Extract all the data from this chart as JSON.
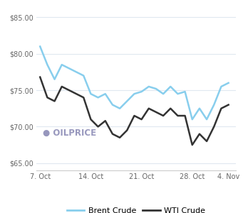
{
  "brent_x": [
    0,
    1,
    2,
    3,
    4,
    5,
    6,
    7,
    8,
    9,
    10,
    11,
    12,
    13,
    14,
    15,
    16,
    17,
    18,
    19,
    20,
    21,
    22,
    23,
    24,
    25,
    26
  ],
  "brent_y": [
    81.0,
    78.5,
    76.5,
    78.5,
    78.0,
    77.5,
    77.0,
    74.5,
    74.0,
    74.5,
    73.0,
    72.5,
    73.5,
    74.5,
    74.8,
    75.5,
    75.2,
    74.5,
    75.5,
    74.5,
    74.8,
    71.0,
    72.5,
    71.0,
    73.0,
    75.5,
    76.0
  ],
  "wti_x": [
    0,
    1,
    2,
    3,
    4,
    5,
    6,
    7,
    8,
    9,
    10,
    11,
    12,
    13,
    14,
    15,
    16,
    17,
    18,
    19,
    20,
    21,
    22,
    23,
    24,
    25,
    26
  ],
  "wti_y": [
    76.8,
    74.0,
    73.5,
    75.5,
    75.0,
    74.5,
    74.0,
    71.0,
    70.0,
    70.8,
    69.0,
    68.5,
    69.5,
    71.5,
    71.0,
    72.5,
    72.0,
    71.5,
    72.5,
    71.5,
    71.5,
    67.5,
    69.0,
    68.0,
    70.0,
    72.5,
    73.0
  ],
  "xticks": [
    0,
    7,
    14,
    21,
    26
  ],
  "xtick_labels": [
    "7. Oct",
    "14. Oct",
    "21. Oct",
    "28. Oct",
    "4. Nov"
  ],
  "yticks": [
    65,
    70,
    75,
    80,
    85
  ],
  "ytick_labels": [
    "$65.00",
    "$70.00",
    "$75.00",
    "$80.00",
    "$85.00"
  ],
  "ylim": [
    64.0,
    86.5
  ],
  "xlim": [
    -0.5,
    27.0
  ],
  "brent_color": "#88CEED",
  "wti_color": "#333333",
  "bg_color": "#ffffff",
  "grid_color": "#e0e8f0",
  "legend_brent": "Brent Crude",
  "legend_wti": "WTI Crude",
  "linewidth": 1.8
}
